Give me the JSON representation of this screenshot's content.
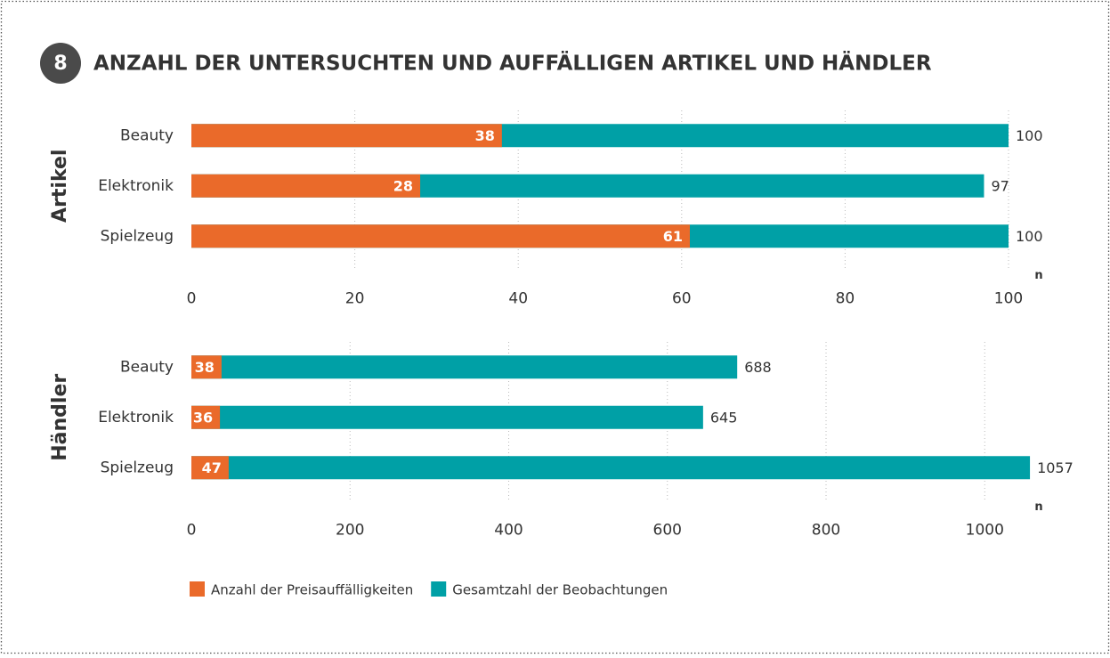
{
  "figure_number": "8",
  "title": "ANZAHL DER UNTERSUCHTEN UND AUFFÄLLIGEN ARTIKEL UND HÄNDLER",
  "chart_data": [
    {
      "type": "bar",
      "orientation": "horizontal",
      "label": "Artikel",
      "unit_label": "n",
      "categories": [
        "Beauty",
        "Elektronik",
        "Spielzeug"
      ],
      "series": [
        {
          "name": "Anzahl der Preisauffälligkeiten",
          "color": "#ea6a2a",
          "values": [
            38,
            28,
            61
          ]
        },
        {
          "name": "Gesamtzahl der Beobachtungen",
          "color": "#00a0a6",
          "values": [
            100,
            97,
            100
          ]
        }
      ],
      "xlim": [
        0,
        100
      ],
      "xticks": [
        0,
        20,
        40,
        60,
        80,
        100
      ],
      "grid": true
    },
    {
      "type": "bar",
      "orientation": "horizontal",
      "label": "Händler",
      "unit_label": "n",
      "categories": [
        "Beauty",
        "Elektronik",
        "Spielzeug"
      ],
      "series": [
        {
          "color": "#ea6a2a",
          "values": [
            38,
            36,
            47
          ]
        },
        {
          "color": "#00a0a6",
          "values": [
            688,
            645,
            1057
          ]
        }
      ],
      "xlim": [
        0,
        1030
      ],
      "xticks": [
        0,
        200,
        400,
        600,
        800,
        1000
      ],
      "grid": true
    }
  ]
}
